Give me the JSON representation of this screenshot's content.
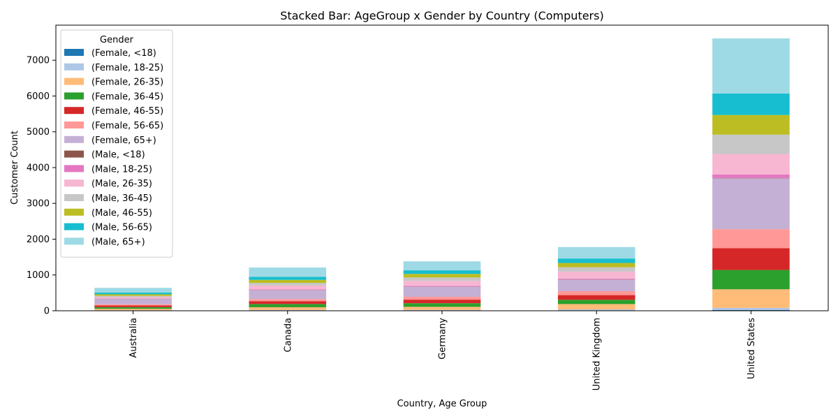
{
  "chart_data": {
    "type": "bar",
    "stacked": true,
    "title": "Stacked Bar: AgeGroup x Gender by Country (Computers)",
    "xlabel": "Country, Age Group",
    "ylabel": "Customer Count",
    "ylim": [
      0,
      7980
    ],
    "yticks": [
      0,
      1000,
      2000,
      3000,
      4000,
      5000,
      6000,
      7000
    ],
    "grid": false,
    "legend": {
      "title": "Gender",
      "placement": "top-left"
    },
    "categories": [
      "Australia",
      "Canada",
      "Germany",
      "United Kingdom",
      "United States"
    ],
    "series": [
      {
        "name": "(Female, <18)",
        "color": "#1f77b4",
        "values": [
          5,
          8,
          10,
          12,
          20
        ]
      },
      {
        "name": "(Female, 18-25)",
        "color": "#aec7e8",
        "values": [
          10,
          15,
          15,
          25,
          60
        ]
      },
      {
        "name": "(Female, 26-35)",
        "color": "#ffbb78",
        "values": [
          40,
          75,
          85,
          150,
          520
        ]
      },
      {
        "name": "(Female, 36-45)",
        "color": "#2ca02c",
        "values": [
          45,
          90,
          100,
          120,
          540
        ]
      },
      {
        "name": "(Female, 46-55)",
        "color": "#d62728",
        "values": [
          50,
          80,
          100,
          130,
          610
        ]
      },
      {
        "name": "(Female, 56-65)",
        "color": "#ff9896",
        "values": [
          30,
          60,
          80,
          110,
          530
        ]
      },
      {
        "name": "(Female, 65+)",
        "color": "#c5b0d5",
        "values": [
          150,
          250,
          280,
          320,
          1420
        ]
      },
      {
        "name": "(Male, <18)",
        "color": "#8c564b",
        "values": [
          3,
          5,
          5,
          8,
          10
        ]
      },
      {
        "name": "(Male, 18-25)",
        "color": "#e377c2",
        "values": [
          7,
          15,
          20,
          20,
          100
        ]
      },
      {
        "name": "(Male, 26-35)",
        "color": "#f7b6d2",
        "values": [
          40,
          105,
          140,
          200,
          570
        ]
      },
      {
        "name": "(Male, 36-45)",
        "color": "#c7c7c7",
        "values": [
          35,
          75,
          95,
          120,
          540
        ]
      },
      {
        "name": "(Male, 46-55)",
        "color": "#bcbd22",
        "values": [
          45,
          85,
          100,
          120,
          550
        ]
      },
      {
        "name": "(Male, 56-65)",
        "color": "#17becf",
        "values": [
          50,
          85,
          100,
          125,
          600
        ]
      },
      {
        "name": "(Male, 65+)",
        "color": "#9edae5",
        "values": [
          130,
          260,
          250,
          320,
          1540
        ]
      }
    ]
  }
}
